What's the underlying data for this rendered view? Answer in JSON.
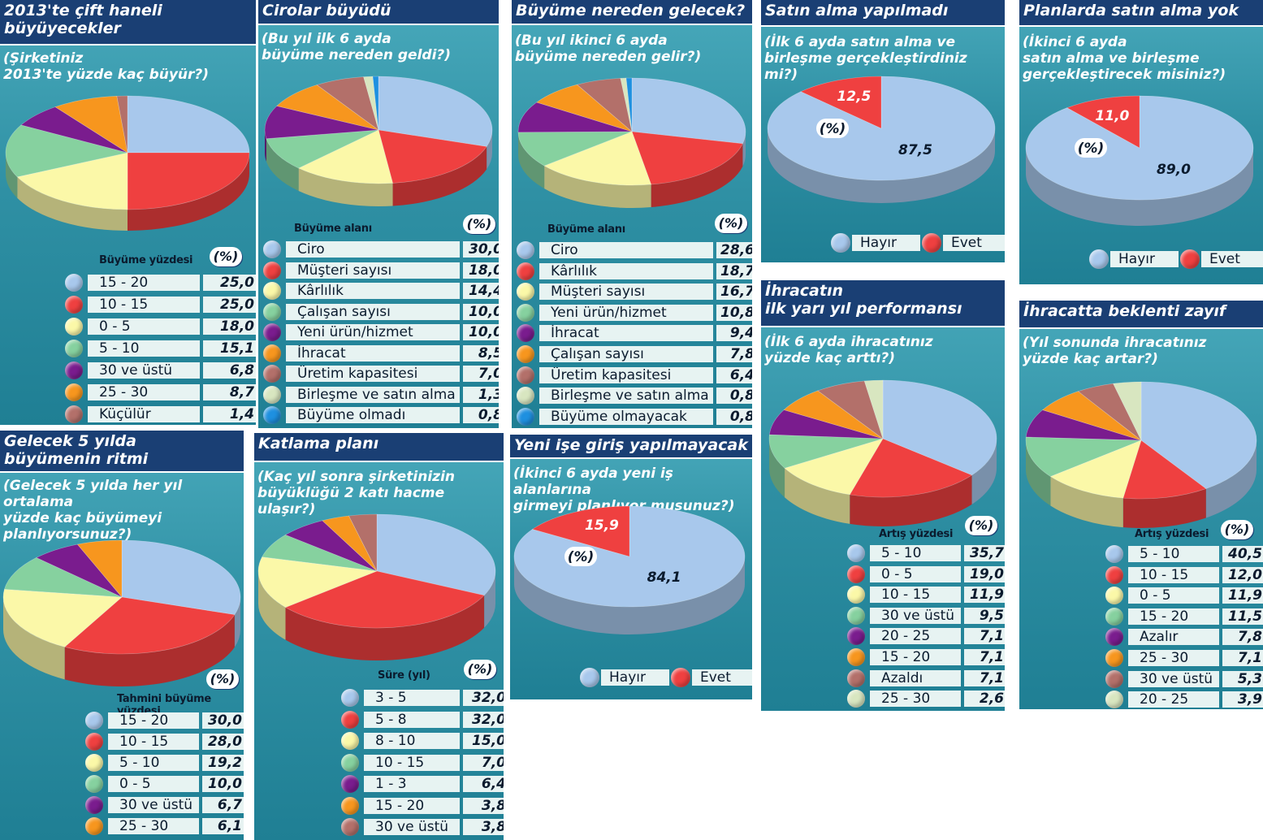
{
  "chart_data": [
    {
      "id": "p1",
      "type": "pie",
      "title": "2013'te çift haneli\nbüyüyecekler",
      "question": "(Şirketiniz\n2013'te yüzde kaç büyür?)",
      "legend_title": "Büyüme yüzdesi",
      "unit": "(%)",
      "categories": [
        "15 - 20",
        "10 - 15",
        "0 - 5",
        "5 - 10",
        "30 ve üstü",
        "25 - 30",
        "Küçülür"
      ],
      "values": [
        25.0,
        25.0,
        18.0,
        15.1,
        6.8,
        8.7,
        1.4
      ],
      "value_labels": [
        "25,0",
        "25,0",
        "18,0",
        "15,1",
        "6,8",
        "8,7",
        "1,4"
      ],
      "colors": [
        "#a8c8ec",
        "#ef4040",
        "#fbf8a8",
        "#86d19f",
        "#7a1c8e",
        "#f7961e",
        "#b3706a"
      ]
    },
    {
      "id": "p2",
      "type": "pie",
      "title": "Cirolar büyüdü",
      "question": "(Bu yıl ilk 6 ayda\nbüyüme nereden geldi?)",
      "legend_title": "Büyüme alanı",
      "unit": "(%)",
      "categories": [
        "Ciro",
        "Müşteri sayısı",
        "Kârlılık",
        "Çalışan sayısı",
        "Yeni ürün/hizmet",
        "İhracat",
        "Üretim kapasitesi",
        "Birleşme ve satın alma",
        "Büyüme olmadı"
      ],
      "values": [
        30.0,
        18.0,
        14.4,
        10.0,
        10.0,
        8.5,
        7.0,
        1.3,
        0.8
      ],
      "value_labels": [
        "30,0",
        "18,0",
        "14,4",
        "10,0",
        "10,0",
        "8,5",
        "7,0",
        "1,3",
        "0,8"
      ],
      "colors": [
        "#a8c8ec",
        "#ef4040",
        "#fbf8a8",
        "#86d19f",
        "#7a1c8e",
        "#f7961e",
        "#b3706a",
        "#d8e6c0",
        "#1e90e0"
      ]
    },
    {
      "id": "p3",
      "type": "pie",
      "title": "Büyüme nereden gelecek?",
      "question": "(Bu yıl ikinci 6 ayda\nbüyüme nereden gelir?)",
      "legend_title": "Büyüme alanı",
      "unit": "(%)",
      "categories": [
        "Ciro",
        "Kârlılık",
        "Müşteri sayısı",
        "Yeni ürün/hizmet",
        "İhracat",
        "Çalışan sayısı",
        "Üretim kapasitesi",
        "Birleşme ve satın alma",
        "Büyüme olmayacak"
      ],
      "values": [
        28.6,
        18.7,
        16.7,
        10.8,
        9.4,
        7.8,
        6.4,
        0.8,
        0.8
      ],
      "value_labels": [
        "28,6",
        "18,7",
        "16,7",
        "10,8",
        "9,4",
        "7,8",
        "6,4",
        "0,8",
        "0,8"
      ],
      "colors": [
        "#a8c8ec",
        "#ef4040",
        "#fbf8a8",
        "#86d19f",
        "#7a1c8e",
        "#f7961e",
        "#b3706a",
        "#d8e6c0",
        "#1e90e0"
      ]
    },
    {
      "id": "p4",
      "type": "pie",
      "title": "Satın alma yapılmadı",
      "question": "(İlk 6 ayda satın alma ve\nbirleşme gerçekleştirdiniz mi?)",
      "unit": "(%)",
      "categories": [
        "Hayır",
        "Evet"
      ],
      "values": [
        87.5,
        12.5
      ],
      "value_labels": [
        "87,5",
        "12,5"
      ],
      "colors": [
        "#a8c8ec",
        "#ef4040"
      ]
    },
    {
      "id": "p5",
      "type": "pie",
      "title": "Planlarda satın alma yok",
      "question": "(İkinci 6 ayda\nsatın alma ve birleşme\ngerçekleştirecek misiniz?)",
      "unit": "(%)",
      "categories": [
        "Hayır",
        "Evet"
      ],
      "values": [
        89.0,
        11.0
      ],
      "value_labels": [
        "89,0",
        "11,0"
      ],
      "colors": [
        "#a8c8ec",
        "#ef4040"
      ]
    },
    {
      "id": "p6",
      "type": "pie",
      "title": "Gelecek 5 yılda\nbüyümenin ritmi",
      "question": "(Gelecek 5 yılda her yıl ortalama\n yüzde kaç büyümeyi\nplanlıyorsunuz?)",
      "legend_title": "Tahmini büyüme yüzdesi",
      "unit": "(%)",
      "categories": [
        "15 - 20",
        "10 - 15",
        "5 - 10",
        "0 - 5",
        "30 ve üstü",
        "25 - 30"
      ],
      "values": [
        30.0,
        28.0,
        19.2,
        10.0,
        6.7,
        6.1
      ],
      "value_labels": [
        "30,0",
        "28,0",
        "19,2",
        "10,0",
        "6,7",
        "6,1"
      ],
      "colors": [
        "#a8c8ec",
        "#ef4040",
        "#fbf8a8",
        "#86d19f",
        "#7a1c8e",
        "#f7961e"
      ]
    },
    {
      "id": "p7",
      "type": "pie",
      "title": "Katlama planı",
      "question": "(Kaç yıl sonra şirketinizin\nbüyüklüğü 2 katı hacme ulaşır?)",
      "legend_title": "Süre (yıl)",
      "unit": "(%)",
      "categories": [
        "3 - 5",
        "5 - 8",
        "8 - 10",
        "10 - 15",
        "1 - 3",
        "15 - 20",
        "30 ve üstü"
      ],
      "values": [
        32.0,
        32.0,
        15.0,
        7.0,
        6.4,
        3.8,
        3.8
      ],
      "value_labels": [
        "32,0",
        "32,0",
        "15,0",
        "7,0",
        "6,4",
        "3,8",
        "3,8"
      ],
      "colors": [
        "#a8c8ec",
        "#ef4040",
        "#fbf8a8",
        "#86d19f",
        "#7a1c8e",
        "#f7961e",
        "#b3706a"
      ]
    },
    {
      "id": "p8",
      "type": "pie",
      "title": "Yeni işe giriş yapılmayacak",
      "question": "(İkinci 6 ayda yeni iş alanlarına\ngirmeyi planlıyor musunuz?)",
      "unit": "(%)",
      "categories": [
        "Hayır",
        "Evet"
      ],
      "values": [
        84.1,
        15.9
      ],
      "value_labels": [
        "84,1",
        "15,9"
      ],
      "colors": [
        "#a8c8ec",
        "#ef4040"
      ]
    },
    {
      "id": "p9",
      "type": "pie",
      "title": "İhracatın\nilk yarı yıl performansı",
      "question": "(İlk 6 ayda ihracatınız\nyüzde kaç arttı?)",
      "legend_title": "Artış yüzdesi",
      "unit": "(%)",
      "categories": [
        "5 - 10",
        "0 - 5",
        "10 - 15",
        "30 ve üstü",
        "20 - 25",
        "15 - 20",
        "Azaldı",
        "25 - 30"
      ],
      "values": [
        35.7,
        19.0,
        11.9,
        9.5,
        7.1,
        7.1,
        7.1,
        2.6
      ],
      "value_labels": [
        "35,7",
        "19,0",
        "11,9",
        "9,5",
        "7,1",
        "7,1",
        "7,1",
        "2,6"
      ],
      "colors": [
        "#a8c8ec",
        "#ef4040",
        "#fbf8a8",
        "#86d19f",
        "#7a1c8e",
        "#f7961e",
        "#b3706a",
        "#d8e6c0"
      ]
    },
    {
      "id": "p10",
      "type": "pie",
      "title": "İhracatta beklenti zayıf",
      "question": "(Yıl sonunda ihracatınız\nyüzde kaç artar?)",
      "legend_title": "Artış yüzdesi",
      "unit": "(%)",
      "categories": [
        "5 - 10",
        "10 - 15",
        "0 - 5",
        "15 - 20",
        "Azalır",
        "25 - 30",
        "30 ve üstü",
        "20 - 25"
      ],
      "values": [
        40.5,
        12.0,
        11.9,
        11.5,
        7.8,
        7.1,
        5.3,
        3.9
      ],
      "value_labels": [
        "40,5",
        "12,0",
        "11,9",
        "11,5",
        "7,8",
        "7,1",
        "5,3",
        "3,9"
      ],
      "colors": [
        "#a8c8ec",
        "#ef4040",
        "#fbf8a8",
        "#86d19f",
        "#7a1c8e",
        "#f7961e",
        "#b3706a",
        "#d8e6c0"
      ]
    }
  ]
}
